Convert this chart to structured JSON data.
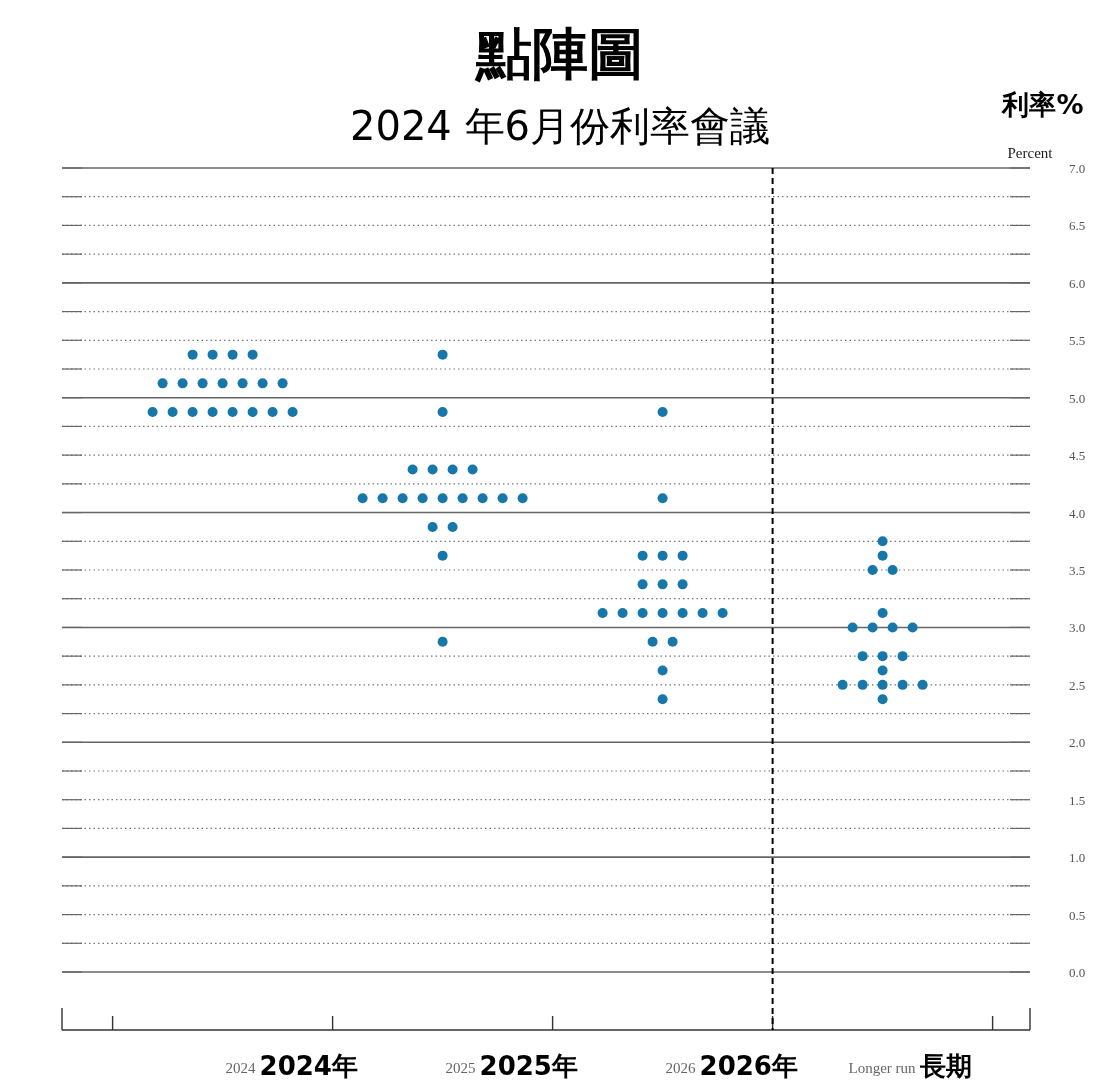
{
  "chart_data": {
    "type": "scatter",
    "title": "點陣圖",
    "subtitle": "2024 年6月份利率會議",
    "ylabel": "Percent",
    "categories": [
      "2024",
      "2025",
      "2026",
      "Longer run"
    ],
    "series": [
      {
        "color": "#1677a8",
        "values": [
          5.375,
          5.375,
          4.875,
          3.75
        ]
      },
      {
        "color": "#1677a8",
        "values": [
          5.375,
          4.875,
          4.125,
          3.625
        ]
      },
      {
        "color": "#1677a8",
        "values": [
          5.375,
          4.375,
          3.625,
          3.5
        ]
      },
      {
        "color": "#1677a8",
        "values": [
          5.375,
          4.375,
          3.625,
          3.5
        ]
      },
      {
        "color": "#1677a8",
        "values": [
          5.125,
          4.375,
          3.625,
          3.125
        ]
      },
      {
        "color": "#1677a8",
        "values": [
          5.125,
          4.375,
          3.375,
          3.0
        ]
      },
      {
        "color": "#1677a8",
        "values": [
          5.125,
          4.125,
          3.375,
          3.0
        ]
      },
      {
        "color": "#1677a8",
        "values": [
          5.125,
          4.125,
          3.375,
          3.0
        ]
      },
      {
        "color": "#1677a8",
        "values": [
          5.125,
          4.125,
          3.125,
          3.0
        ]
      },
      {
        "color": "#1677a8",
        "values": [
          5.125,
          4.125,
          3.125,
          2.75
        ]
      },
      {
        "color": "#1677a8",
        "values": [
          5.125,
          4.125,
          3.125,
          2.75
        ]
      },
      {
        "color": "#1677a8",
        "values": [
          4.875,
          4.125,
          3.125,
          2.75
        ]
      },
      {
        "color": "#1677a8",
        "values": [
          4.875,
          4.125,
          3.125,
          2.625
        ]
      },
      {
        "color": "#1677a8",
        "values": [
          4.875,
          4.125,
          3.125,
          2.5
        ]
      },
      {
        "color": "#1677a8",
        "values": [
          4.875,
          4.125,
          3.125,
          2.5
        ]
      },
      {
        "color": "#1677a8",
        "values": [
          4.875,
          3.875,
          2.875,
          2.5
        ]
      },
      {
        "color": "#1677a8",
        "values": [
          4.875,
          3.875,
          2.875,
          2.5
        ]
      },
      {
        "color": "#1677a8",
        "values": [
          4.875,
          3.625,
          2.625,
          2.5
        ]
      },
      {
        "color": "#1677a8",
        "values": [
          4.875,
          2.875,
          2.375,
          2.375
        ]
      }
    ],
    "ylim": [
      0,
      7
    ],
    "yticks": [
      {
        "value": 0,
        "label": "0.0"
      },
      {
        "value": 0.25,
        "label": null
      },
      {
        "value": 0.5,
        "label": "0.5"
      },
      {
        "value": 0.75,
        "label": null
      },
      {
        "value": 1,
        "label": "1.0"
      },
      {
        "value": 1.25,
        "label": null
      },
      {
        "value": 1.5,
        "label": "1.5"
      },
      {
        "value": 1.75,
        "label": null
      },
      {
        "value": 2,
        "label": "2.0"
      },
      {
        "value": 2.25,
        "label": null
      },
      {
        "value": 2.5,
        "label": "2.5"
      },
      {
        "value": 2.75,
        "label": null
      },
      {
        "value": 3,
        "label": "3.0"
      },
      {
        "value": 3.25,
        "label": null
      },
      {
        "value": 3.5,
        "label": "3.5"
      },
      {
        "value": 3.75,
        "label": null
      },
      {
        "value": 4,
        "label": "4.0"
      },
      {
        "value": 4.25,
        "label": null
      },
      {
        "value": 4.5,
        "label": "4.5"
      },
      {
        "value": 4.75,
        "label": null
      },
      {
        "value": 5,
        "label": "5.0"
      },
      {
        "value": 5.25,
        "label": null
      },
      {
        "value": 5.5,
        "label": "5.5"
      },
      {
        "value": 5.75,
        "label": null
      },
      {
        "value": 6,
        "label": "6.0"
      },
      {
        "value": 6.25,
        "label": null
      },
      {
        "value": 6.5,
        "label": "6.5"
      },
      {
        "value": 6.75,
        "label": null
      },
      {
        "value": 7,
        "label": "7.0"
      }
    ],
    "grid": "y",
    "marker": "circle",
    "annotations": [
      "利率%",
      "2024年",
      "2025年",
      "2026年",
      "長期"
    ]
  }
}
